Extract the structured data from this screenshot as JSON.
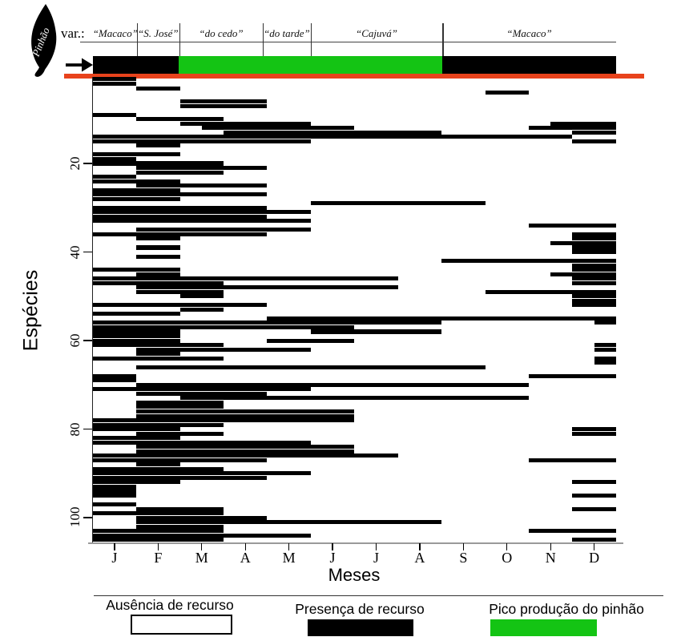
{
  "pinhao_header": {
    "pinhao_label": "Pinhão",
    "var_label": "var.:",
    "varieties": [
      {
        "name": "“Macaco”",
        "start": 0,
        "end": 1.01
      },
      {
        "name": "“S. José”",
        "start": 1.01,
        "end": 1.99
      },
      {
        "name": "“do cedo”",
        "start": 1.99,
        "end": 3.9
      },
      {
        "name": "“do tarde”",
        "start": 3.9,
        "end": 5.0
      },
      {
        "name": "“Cajuvá”",
        "start": 5.0,
        "end": 8.02
      },
      {
        "name": "“Macaco”",
        "start": 8.02,
        "end": 12
      }
    ],
    "production_bar": [
      {
        "color": "black",
        "start": 0,
        "end": 1.97
      },
      {
        "color": "green",
        "start": 1.97,
        "end": 8.02
      },
      {
        "color": "black",
        "start": 8.02,
        "end": 12
      }
    ]
  },
  "colors": {
    "black": "#000000",
    "green": "#14c414",
    "red": "#e8431c",
    "axis_gray": "#9a9a9a"
  },
  "chart_data": {
    "type": "heatmap",
    "subtype": "phenology-presence-absence-gantt",
    "xlabel": "Meses",
    "ylabel": "Espécies",
    "months": [
      "J",
      "F",
      "M",
      "A",
      "M",
      "J",
      "J",
      "A",
      "S",
      "O",
      "N",
      "D"
    ],
    "yticks": [
      20,
      40,
      60,
      80,
      100
    ],
    "n_species": 105,
    "interval_units": "months (0 = start of January, 12 = end of December)",
    "species_rows": [
      [
        [
          0,
          1
        ]
      ],
      [
        [
          0,
          1
        ]
      ],
      [
        [
          1,
          2
        ]
      ],
      [
        [
          9,
          10
        ]
      ],
      [],
      [
        [
          2,
          4
        ]
      ],
      [
        [
          2,
          4
        ]
      ],
      [],
      [
        [
          0,
          1
        ]
      ],
      [
        [
          1,
          3
        ]
      ],
      [
        [
          2,
          5
        ],
        [
          10.5,
          12
        ]
      ],
      [
        [
          2.5,
          6
        ],
        [
          10,
          12
        ]
      ],
      [
        [
          3,
          8
        ],
        [
          11,
          12
        ]
      ],
      [
        [
          0,
          11
        ]
      ],
      [
        [
          0,
          5
        ],
        [
          11,
          12
        ]
      ],
      [
        [
          1,
          2
        ]
      ],
      [],
      [
        [
          0,
          2
        ]
      ],
      [
        [
          0,
          1
        ]
      ],
      [
        [
          0,
          3
        ]
      ],
      [
        [
          1,
          4
        ]
      ],
      [
        [
          1,
          3
        ]
      ],
      [
        [
          0,
          1
        ]
      ],
      [
        [
          0,
          2
        ]
      ],
      [
        [
          1,
          4
        ]
      ],
      [
        [
          0,
          2
        ]
      ],
      [
        [
          0,
          4
        ]
      ],
      [
        [
          0,
          2
        ]
      ],
      [
        [
          5,
          9
        ]
      ],
      [
        [
          0,
          4
        ]
      ],
      [
        [
          0,
          5
        ]
      ],
      [
        [
          0,
          4
        ]
      ],
      [
        [
          0,
          5
        ]
      ],
      [
        [
          10,
          12
        ]
      ],
      [
        [
          1,
          5
        ]
      ],
      [
        [
          0,
          4
        ],
        [
          11,
          12
        ]
      ],
      [
        [
          1,
          2
        ],
        [
          11,
          12
        ]
      ],
      [
        [
          10.5,
          12
        ]
      ],
      [
        [
          1,
          2
        ],
        [
          11,
          12
        ]
      ],
      [
        [
          11,
          12
        ]
      ],
      [
        [
          1,
          2
        ]
      ],
      [
        [
          8,
          12
        ]
      ],
      [
        [
          11,
          12
        ]
      ],
      [
        [
          0,
          2
        ],
        [
          11,
          12
        ]
      ],
      [
        [
          1,
          2
        ],
        [
          10.5,
          12
        ]
      ],
      [
        [
          0,
          7
        ],
        [
          11,
          12
        ]
      ],
      [
        [
          0,
          3
        ],
        [
          11,
          12
        ]
      ],
      [
        [
          1,
          7
        ]
      ],
      [
        [
          1,
          3
        ],
        [
          9,
          12
        ]
      ],
      [
        [
          2,
          3
        ],
        [
          11,
          12
        ]
      ],
      [
        [
          11,
          12
        ]
      ],
      [
        [
          0,
          4
        ],
        [
          11,
          12
        ]
      ],
      [
        [
          2,
          3
        ]
      ],
      [
        [
          0,
          2
        ]
      ],
      [
        [
          4,
          12
        ]
      ],
      [
        [
          0,
          8
        ],
        [
          11.5,
          12
        ]
      ],
      [
        [
          0,
          6
        ]
      ],
      [
        [
          0,
          2
        ],
        [
          5,
          8
        ]
      ],
      [
        [
          0,
          2
        ]
      ],
      [
        [
          0,
          2
        ],
        [
          4,
          6
        ]
      ],
      [
        [
          0,
          3
        ],
        [
          11.5,
          12
        ]
      ],
      [
        [
          1,
          5
        ],
        [
          11.5,
          12
        ]
      ],
      [
        [
          1,
          2
        ]
      ],
      [
        [
          0,
          3
        ],
        [
          11.5,
          12
        ]
      ],
      [
        [
          11.5,
          12
        ]
      ],
      [
        [
          1,
          9
        ]
      ],
      [],
      [
        [
          0,
          1
        ],
        [
          10,
          12
        ]
      ],
      [
        [
          0,
          1
        ]
      ],
      [
        [
          1,
          10
        ]
      ],
      [
        [
          0,
          5
        ]
      ],
      [
        [
          1,
          4
        ]
      ],
      [
        [
          2,
          10
        ]
      ],
      [
        [
          1,
          3
        ]
      ],
      [
        [
          1,
          3
        ]
      ],
      [
        [
          1,
          6
        ]
      ],
      [
        [
          1,
          6
        ]
      ],
      [
        [
          0,
          6
        ]
      ],
      [
        [
          0,
          3
        ]
      ],
      [
        [
          0,
          2
        ],
        [
          11,
          12
        ]
      ],
      [
        [
          1,
          3
        ],
        [
          11,
          12
        ]
      ],
      [
        [
          0,
          2
        ]
      ],
      [
        [
          0,
          5
        ]
      ],
      [
        [
          1,
          6
        ]
      ],
      [
        [
          1,
          6
        ]
      ],
      [
        [
          0,
          7
        ]
      ],
      [
        [
          0,
          4
        ],
        [
          10,
          12
        ]
      ],
      [
        [
          1,
          2
        ]
      ],
      [
        [
          0,
          3
        ]
      ],
      [
        [
          0,
          5
        ]
      ],
      [
        [
          0,
          4
        ]
      ],
      [
        [
          0,
          2
        ],
        [
          11,
          12
        ]
      ],
      [
        [
          0,
          1
        ]
      ],
      [
        [
          0,
          1
        ]
      ],
      [
        [
          0,
          1
        ],
        [
          11,
          12
        ]
      ],
      [],
      [
        [
          0,
          1
        ]
      ],
      [
        [
          1,
          3
        ],
        [
          11,
          12
        ]
      ],
      [
        [
          0,
          3
        ]
      ],
      [
        [
          1,
          4
        ]
      ],
      [
        [
          1,
          8
        ]
      ],
      [
        [
          1,
          3
        ]
      ],
      [
        [
          0,
          3
        ],
        [
          10,
          12
        ]
      ],
      [
        [
          0,
          5
        ]
      ],
      [
        [
          0,
          3
        ],
        [
          11,
          12
        ]
      ]
    ]
  },
  "legend": {
    "items": [
      {
        "label": "Ausência de recurso",
        "type": "absence",
        "fill": "#ffffff",
        "border": "#000000"
      },
      {
        "label": "Presença de recurso",
        "type": "presence",
        "fill": "#000000",
        "border": "none"
      },
      {
        "label": "Pico produção do pinhão",
        "type": "peak",
        "fill": "#14c414",
        "border": "none"
      }
    ]
  }
}
